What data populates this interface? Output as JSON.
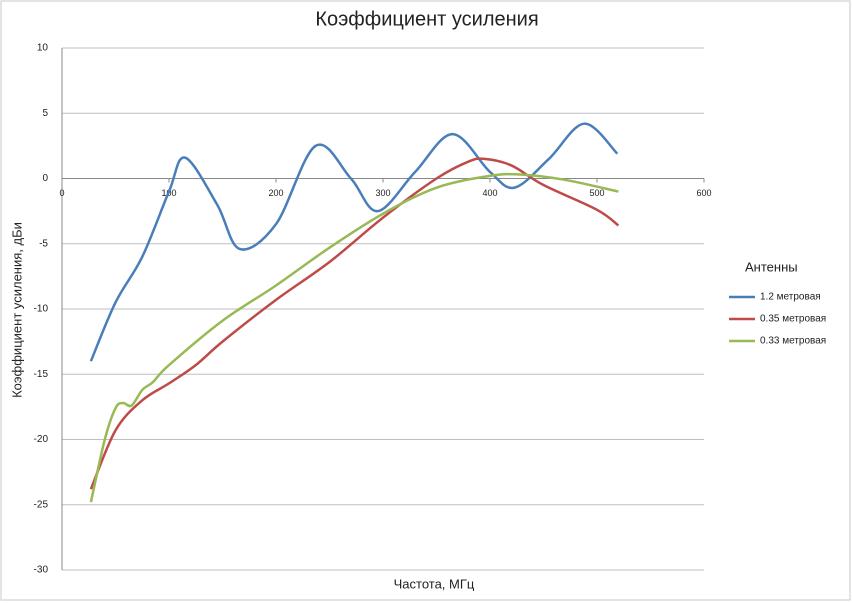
{
  "chart_data": {
    "type": "line",
    "title": "Коэффициент усиления",
    "x_label": "Частота, МГц",
    "y_label": "Коэффициент усиления, дБи",
    "legend_title": "Антенны",
    "legend": "right",
    "grid": true,
    "xlim": [
      0,
      600
    ],
    "xticks": [
      0,
      100,
      200,
      300,
      400,
      500,
      600
    ],
    "ylim": [
      -30,
      10
    ],
    "yticks": [
      -30,
      -25,
      -20,
      -15,
      -10,
      -5,
      0,
      5,
      10
    ],
    "series": [
      {
        "name": "1.2 метровая",
        "color": "#4a7ebb",
        "x": [
          27,
          50,
          75,
          100,
          115,
          145,
          166,
          200,
          237,
          270,
          295,
          330,
          365,
          400,
          423,
          455,
          488,
          519
        ],
        "values": [
          -14,
          -9.5,
          -6,
          -1,
          1.6,
          -2,
          -5.4,
          -3.5,
          2.5,
          0,
          -2.5,
          0.5,
          3.4,
          0.5,
          -0.7,
          1.5,
          4.2,
          1.9
        ]
      },
      {
        "name": "0.35 метровая",
        "color": "#be4b48",
        "x": [
          27,
          50,
          75,
          100,
          125,
          150,
          200,
          250,
          300,
          350,
          380,
          395,
          420,
          450,
          500,
          520
        ],
        "values": [
          -23.8,
          -19.3,
          -17,
          -15.7,
          -14.3,
          -12.5,
          -9.3,
          -6.4,
          -3,
          0,
          1.3,
          1.5,
          1,
          -0.5,
          -2.4,
          -3.6
        ]
      },
      {
        "name": "0.33 метровая",
        "color": "#98b954",
        "x": [
          27,
          40,
          50,
          57,
          65,
          75,
          85,
          100,
          150,
          200,
          250,
          300,
          350,
          400,
          430,
          470,
          520
        ],
        "values": [
          -24.8,
          -20,
          -17.6,
          -17.2,
          -17.4,
          -16.2,
          -15.6,
          -14.3,
          -10.9,
          -8.2,
          -5.3,
          -2.7,
          -0.7,
          0.2,
          0.3,
          -0.1,
          -1
        ]
      }
    ]
  }
}
